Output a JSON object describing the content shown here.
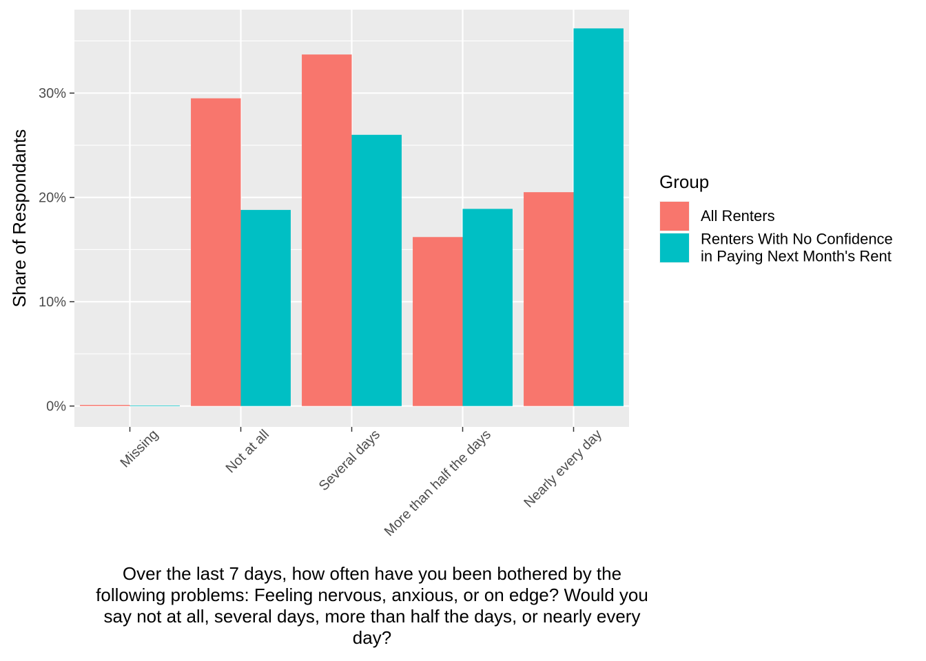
{
  "chart_data": {
    "type": "bar",
    "categories": [
      "Missing",
      "Not at all",
      "Several days",
      "More than half the days",
      "Nearly every day"
    ],
    "series": [
      {
        "name": "All Renters",
        "color": "#F8766D",
        "values": [
          0.1,
          29.5,
          33.7,
          16.2,
          20.5
        ]
      },
      {
        "name": "Renters With No Confidence in Paying Next Month's Rent",
        "color": "#00BFC4",
        "values": [
          0.05,
          18.8,
          26.0,
          18.9,
          36.2
        ]
      }
    ],
    "ylabel": "Share of Respondants",
    "xlabel_lines": [
      "Over the last 7 days, how often have you been bothered by the",
      "following problems: Feeling nervous, anxious, or on edge? Would you",
      "say not at all, several days, more than half the days, or nearly every",
      "day?"
    ],
    "ylim": [
      -2,
      38
    ],
    "yticks": [
      0,
      10,
      20,
      30
    ],
    "ytick_labels": [
      "0%",
      "10%",
      "20%",
      "30%"
    ],
    "grid": true,
    "legend": {
      "title": "Group",
      "position": "right",
      "entries": [
        {
          "lines": [
            "All Renters"
          ],
          "color": "#F8766D"
        },
        {
          "lines": [
            "Renters With No Confidence",
            "in Paying Next Month's Rent"
          ],
          "color": "#00BFC4"
        }
      ]
    }
  }
}
